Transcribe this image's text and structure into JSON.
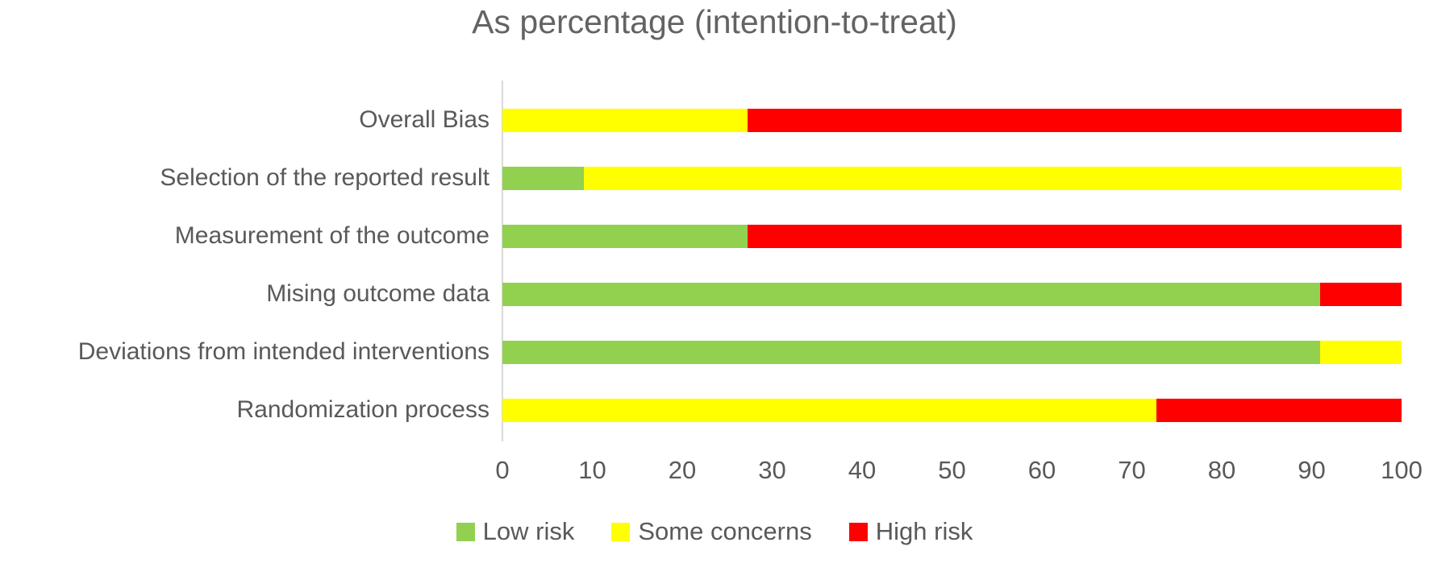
{
  "title": "As percentage (intention-to-treat)",
  "colors": {
    "low_risk": "#92D050",
    "some_concerns": "#FFFF00",
    "high_risk": "#FF0000",
    "text_gray": "#595959",
    "axis_line": "#D9D9D9"
  },
  "chart_data": {
    "type": "bar",
    "orientation": "horizontal",
    "stacked": true,
    "unit": "percent",
    "title": "As percentage (intention-to-treat)",
    "categories": [
      "Overall Bias",
      "Selection of the reported result",
      "Measurement of the outcome",
      "Mising outcome data",
      "Deviations from intended interventions",
      "Randomization process"
    ],
    "series": [
      {
        "name": "Low risk",
        "color": "#92D050",
        "values": [
          0,
          9.1,
          27.3,
          90.9,
          90.9,
          0
        ]
      },
      {
        "name": "Some concerns",
        "color": "#FFFF00",
        "values": [
          27.3,
          90.9,
          0,
          0,
          9.1,
          72.7
        ]
      },
      {
        "name": "High risk",
        "color": "#FF0000",
        "values": [
          72.7,
          0,
          72.7,
          9.1,
          0,
          27.3
        ]
      }
    ],
    "xlim": [
      0,
      100
    ],
    "x_ticks": [
      0,
      10,
      20,
      30,
      40,
      50,
      60,
      70,
      80,
      90,
      100
    ],
    "xlabel": "",
    "ylabel": "",
    "grid": false,
    "legend_position": "bottom"
  }
}
